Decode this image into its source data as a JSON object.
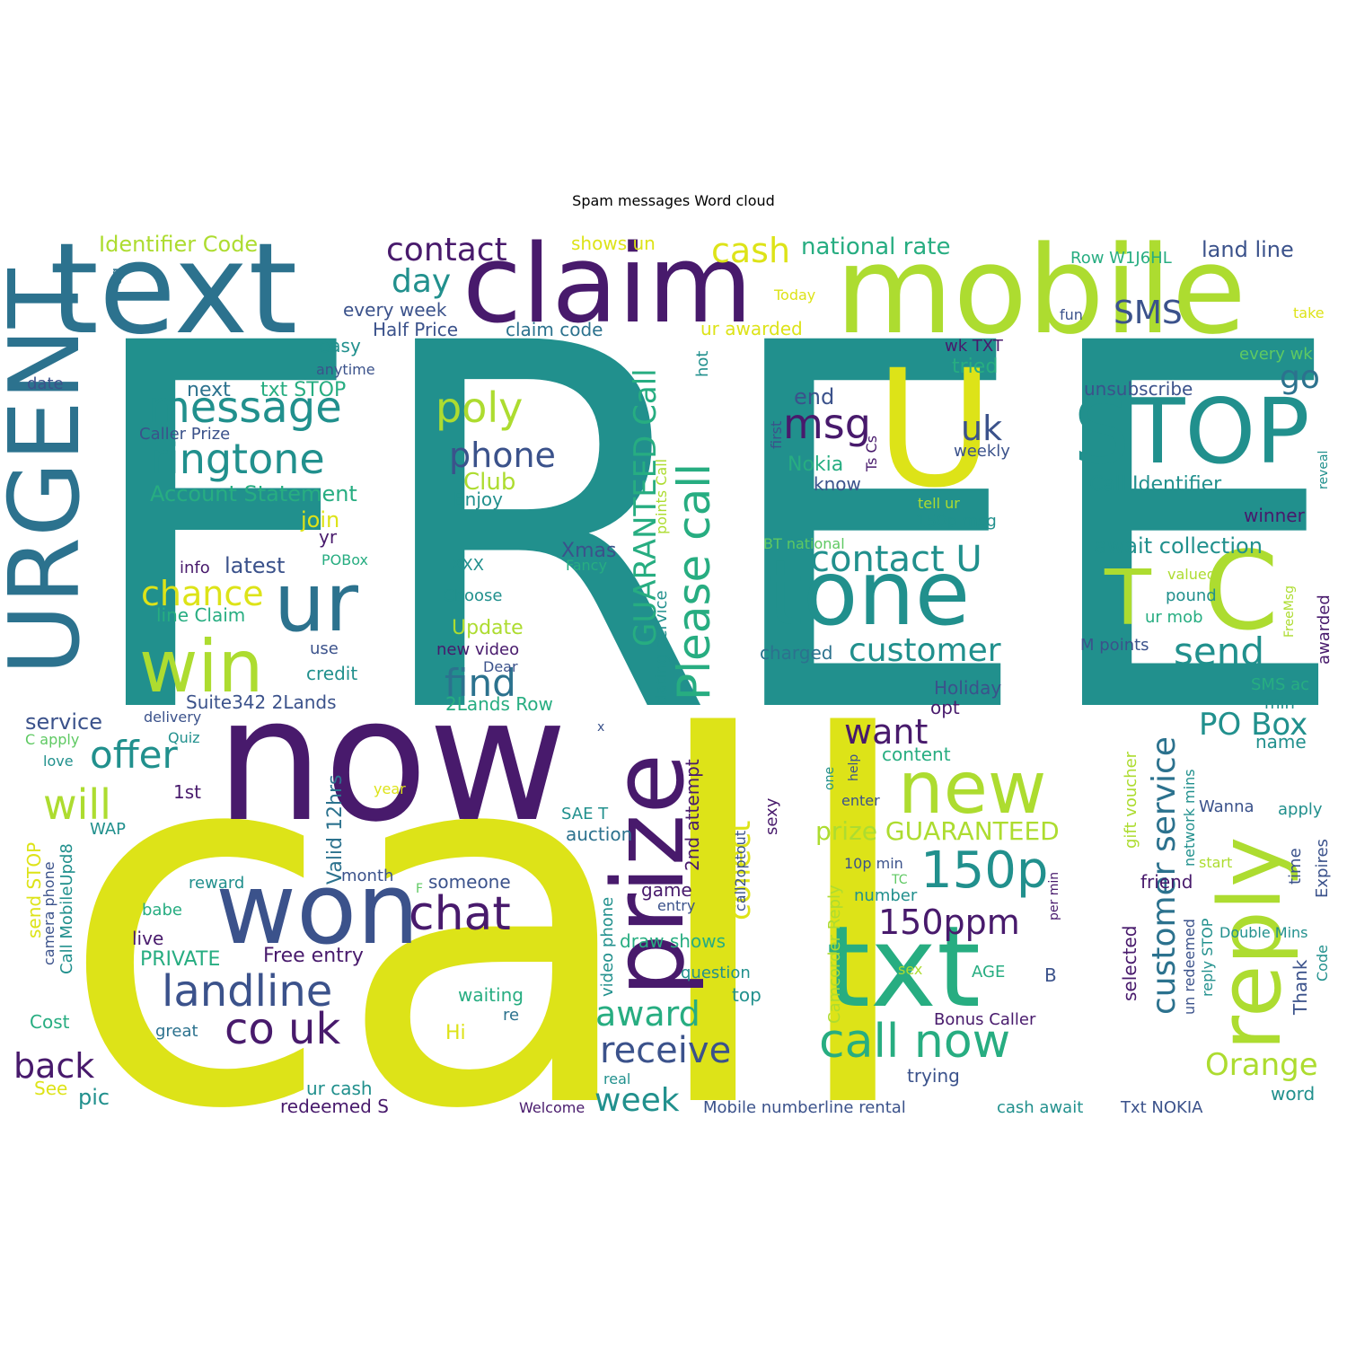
{
  "figure": {
    "title": "Spam messages Word cloud"
  },
  "colors": {
    "purple": "#481a6c",
    "indigo": "#3b528b",
    "blue": "#2c728e",
    "teal": "#21908d",
    "green": "#27ad81",
    "lightgreen": "#5ec962",
    "lime": "#addc30",
    "yellow": "#dde318"
  },
  "words": [
    {
      "text": "FREE",
      "color": "teal"
    },
    {
      "text": "call",
      "color": "yellow"
    },
    {
      "text": "now",
      "color": "purple"
    },
    {
      "text": "text",
      "color": "blue"
    },
    {
      "text": "claim",
      "color": "purple"
    },
    {
      "text": "mobile",
      "color": "lime"
    },
    {
      "text": "URGENT",
      "color": "blue"
    },
    {
      "text": "U",
      "color": "yellow"
    },
    {
      "text": "STOP",
      "color": "teal"
    },
    {
      "text": "ur",
      "color": "blue"
    },
    {
      "text": "win",
      "color": "lime"
    },
    {
      "text": "won",
      "color": "indigo"
    },
    {
      "text": "tone",
      "color": "teal"
    },
    {
      "text": "T",
      "color": "lime"
    },
    {
      "text": "C",
      "color": "lime"
    },
    {
      "text": "txt",
      "color": "green"
    },
    {
      "text": "reply",
      "color": "lime"
    },
    {
      "text": "prize",
      "color": "purple"
    },
    {
      "text": "new",
      "color": "lime"
    },
    {
      "text": "Please call",
      "color": "green"
    },
    {
      "text": "150p",
      "color": "teal"
    },
    {
      "text": "message",
      "color": "teal"
    },
    {
      "text": "ringtone",
      "color": "teal"
    },
    {
      "text": "contact",
      "color": "purple"
    },
    {
      "text": "cash",
      "color": "yellow"
    },
    {
      "text": "poly",
      "color": "lime"
    },
    {
      "text": "phone",
      "color": "indigo"
    },
    {
      "text": "day",
      "color": "teal"
    },
    {
      "text": "msg",
      "color": "purple"
    },
    {
      "text": "uk",
      "color": "indigo"
    },
    {
      "text": "contact U",
      "color": "teal"
    },
    {
      "text": "customer",
      "color": "teal"
    },
    {
      "text": "send",
      "color": "teal"
    },
    {
      "text": "SMS",
      "color": "indigo"
    },
    {
      "text": "go",
      "color": "blue"
    },
    {
      "text": "chance",
      "color": "yellow"
    },
    {
      "text": "find",
      "color": "blue"
    },
    {
      "text": "landline",
      "color": "indigo"
    },
    {
      "text": "co uk",
      "color": "purple"
    },
    {
      "text": "chat",
      "color": "purple"
    },
    {
      "text": "will",
      "color": "lime"
    },
    {
      "text": "offer",
      "color": "teal"
    },
    {
      "text": "back",
      "color": "purple"
    },
    {
      "text": "receive",
      "color": "indigo"
    },
    {
      "text": "award",
      "color": "green"
    },
    {
      "text": "week",
      "color": "teal"
    },
    {
      "text": "call now",
      "color": "green"
    },
    {
      "text": "150ppm",
      "color": "purple"
    },
    {
      "text": "want",
      "color": "purple"
    },
    {
      "text": "PO Box",
      "color": "teal"
    },
    {
      "text": "Orange",
      "color": "lime"
    },
    {
      "text": "customer service",
      "color": "blue"
    },
    {
      "text": "collect",
      "color": "yellow"
    },
    {
      "text": "GUARANTEED Call",
      "color": "green"
    },
    {
      "text": "prize GUARANTEED",
      "color": "lime"
    },
    {
      "text": "Identifier Code",
      "color": "lime"
    },
    {
      "text": "national rate",
      "color": "green"
    },
    {
      "text": "land line",
      "color": "indigo"
    },
    {
      "text": "Row W1J6HL",
      "color": "green"
    },
    {
      "text": "shows un",
      "color": "yellow"
    },
    {
      "text": "every week",
      "color": "indigo"
    },
    {
      "text": "Half Price",
      "color": "indigo"
    },
    {
      "text": "claim code",
      "color": "blue"
    },
    {
      "text": "ur awarded",
      "color": "yellow"
    },
    {
      "text": "Today",
      "color": "yellow"
    },
    {
      "text": "fun",
      "color": "indigo"
    },
    {
      "text": "take",
      "color": "yellow"
    },
    {
      "text": "eg",
      "color": "blue"
    },
    {
      "text": "easy",
      "color": "teal"
    },
    {
      "text": "anytime",
      "color": "indigo"
    },
    {
      "text": "date",
      "color": "indigo"
    },
    {
      "text": "next",
      "color": "blue"
    },
    {
      "text": "txt STOP",
      "color": "green"
    },
    {
      "text": "Caller Prize",
      "color": "indigo"
    },
    {
      "text": "Account Statement",
      "color": "green"
    },
    {
      "text": "join",
      "color": "yellow"
    },
    {
      "text": "yr",
      "color": "purple"
    },
    {
      "text": "POBox",
      "color": "green"
    },
    {
      "text": "info",
      "color": "purple"
    },
    {
      "text": "latest",
      "color": "indigo"
    },
    {
      "text": "line Claim",
      "color": "green"
    },
    {
      "text": "use",
      "color": "indigo"
    },
    {
      "text": "credit",
      "color": "teal"
    },
    {
      "text": "Suite342 2Lands",
      "color": "indigo"
    },
    {
      "text": "delivery",
      "color": "indigo"
    },
    {
      "text": "service",
      "color": "indigo"
    },
    {
      "text": "Quiz",
      "color": "teal"
    },
    {
      "text": "C apply",
      "color": "lightgreen"
    },
    {
      "text": "love",
      "color": "teal"
    },
    {
      "text": "1st",
      "color": "purple"
    },
    {
      "text": "WAP",
      "color": "teal"
    },
    {
      "text": "send STOP",
      "color": "yellow"
    },
    {
      "text": "camera phone",
      "color": "indigo"
    },
    {
      "text": "Call MobileUpd8",
      "color": "teal"
    },
    {
      "text": "reward",
      "color": "teal"
    },
    {
      "text": "babe",
      "color": "green"
    },
    {
      "text": "live",
      "color": "purple"
    },
    {
      "text": "PRIVATE",
      "color": "green"
    },
    {
      "text": "Free entry",
      "color": "purple"
    },
    {
      "text": "month",
      "color": "indigo"
    },
    {
      "text": "Valid 12hrs",
      "color": "blue"
    },
    {
      "text": "Cost",
      "color": "green"
    },
    {
      "text": "great",
      "color": "blue"
    },
    {
      "text": "See",
      "color": "yellow"
    },
    {
      "text": "pic",
      "color": "teal"
    },
    {
      "text": "ur cash",
      "color": "teal"
    },
    {
      "text": "redeemed S",
      "color": "purple"
    },
    {
      "text": "Welcome",
      "color": "purple"
    },
    {
      "text": "year",
      "color": "yellow"
    },
    {
      "text": "F",
      "color": "lightgreen"
    },
    {
      "text": "someone",
      "color": "indigo"
    },
    {
      "text": "Hi",
      "color": "yellow"
    },
    {
      "text": "re",
      "color": "blue"
    },
    {
      "text": "waiting",
      "color": "green"
    },
    {
      "text": "x",
      "color": "indigo"
    },
    {
      "text": "SAE T",
      "color": "teal"
    },
    {
      "text": "auction",
      "color": "blue"
    },
    {
      "text": "game",
      "color": "purple"
    },
    {
      "text": "entry",
      "color": "indigo"
    },
    {
      "text": "draw shows",
      "color": "green"
    },
    {
      "text": "question",
      "color": "teal"
    },
    {
      "text": "top",
      "color": "teal"
    },
    {
      "text": "real",
      "color": "teal"
    },
    {
      "text": "Mobile numberline rental",
      "color": "indigo"
    },
    {
      "text": "cash await",
      "color": "teal"
    },
    {
      "text": "Txt NOKIA",
      "color": "indigo"
    },
    {
      "text": "word",
      "color": "teal"
    },
    {
      "text": "trying",
      "color": "indigo"
    },
    {
      "text": "Bonus Caller",
      "color": "purple"
    },
    {
      "text": "B",
      "color": "indigo"
    },
    {
      "text": "AGE",
      "color": "green"
    },
    {
      "text": "sex",
      "color": "lime"
    },
    {
      "text": "number",
      "color": "teal"
    },
    {
      "text": "TC",
      "color": "lightgreen"
    },
    {
      "text": "10p min",
      "color": "indigo"
    },
    {
      "text": "enter",
      "color": "indigo"
    },
    {
      "text": "content",
      "color": "green"
    },
    {
      "text": "opt",
      "color": "purple"
    },
    {
      "text": "Holiday",
      "color": "indigo"
    },
    {
      "text": "charged",
      "color": "blue"
    },
    {
      "text": "end",
      "color": "indigo"
    },
    {
      "text": "Nokia",
      "color": "green"
    },
    {
      "text": "know",
      "color": "indigo"
    },
    {
      "text": "Ts Cs",
      "color": "purple"
    },
    {
      "text": "first",
      "color": "indigo"
    },
    {
      "text": "hot",
      "color": "teal"
    },
    {
      "text": "wk TXT",
      "color": "purple"
    },
    {
      "text": "tried",
      "color": "green"
    },
    {
      "text": "weekly",
      "color": "indigo"
    },
    {
      "text": "tell ur",
      "color": "lime"
    },
    {
      "text": "150p msg",
      "color": "teal"
    },
    {
      "text": "BT national",
      "color": "lightgreen"
    },
    {
      "text": "unsubscribe",
      "color": "indigo"
    },
    {
      "text": "Call Identifier",
      "color": "teal"
    },
    {
      "text": "every wk",
      "color": "lightgreen"
    },
    {
      "text": "reveal",
      "color": "teal"
    },
    {
      "text": "winner",
      "color": "purple"
    },
    {
      "text": "await collection",
      "color": "teal"
    },
    {
      "text": "valued",
      "color": "lime"
    },
    {
      "text": "pound",
      "color": "teal"
    },
    {
      "text": "ur mob",
      "color": "green"
    },
    {
      "text": "FreeMsg",
      "color": "lime"
    },
    {
      "text": "awarded",
      "color": "purple"
    },
    {
      "text": "M points",
      "color": "indigo"
    },
    {
      "text": "SMS ac",
      "color": "green"
    },
    {
      "text": "min",
      "color": "teal"
    },
    {
      "text": "name",
      "color": "teal"
    },
    {
      "text": "gift voucher",
      "color": "lime"
    },
    {
      "text": "network mins",
      "color": "teal"
    },
    {
      "text": "Wanna",
      "color": "indigo"
    },
    {
      "text": "apply",
      "color": "teal"
    },
    {
      "text": "time",
      "color": "indigo"
    },
    {
      "text": "Expires",
      "color": "indigo"
    },
    {
      "text": "start",
      "color": "lime"
    },
    {
      "text": "friend",
      "color": "purple"
    },
    {
      "text": "Double Mins",
      "color": "teal"
    },
    {
      "text": "Code",
      "color": "teal"
    },
    {
      "text": "Thank",
      "color": "indigo"
    },
    {
      "text": "selected",
      "color": "purple"
    },
    {
      "text": "un redeemed",
      "color": "indigo"
    },
    {
      "text": "reply STOP",
      "color": "teal"
    },
    {
      "text": "per min",
      "color": "purple"
    },
    {
      "text": "help",
      "color": "indigo"
    },
    {
      "text": "one",
      "color": "teal"
    },
    {
      "text": "Camcorder Reply",
      "color": "lime"
    },
    {
      "text": "2nd attempt",
      "color": "purple"
    },
    {
      "text": "call2optout",
      "color": "indigo"
    },
    {
      "text": "sexy",
      "color": "purple"
    },
    {
      "text": "video phone",
      "color": "teal"
    },
    {
      "text": "dating service",
      "color": "teal"
    },
    {
      "text": "points Call",
      "color": "lime"
    },
    {
      "text": "Xmas",
      "color": "indigo"
    },
    {
      "text": "Fancy",
      "color": "green"
    },
    {
      "text": "XXX",
      "color": "teal"
    },
    {
      "text": "Choose",
      "color": "teal"
    },
    {
      "text": "Update",
      "color": "lime"
    },
    {
      "text": "new video",
      "color": "purple"
    },
    {
      "text": "Dear",
      "color": "indigo"
    },
    {
      "text": "2Lands Row",
      "color": "green"
    },
    {
      "text": "Club",
      "color": "lime"
    },
    {
      "text": "Enjoy",
      "color": "teal"
    }
  ]
}
